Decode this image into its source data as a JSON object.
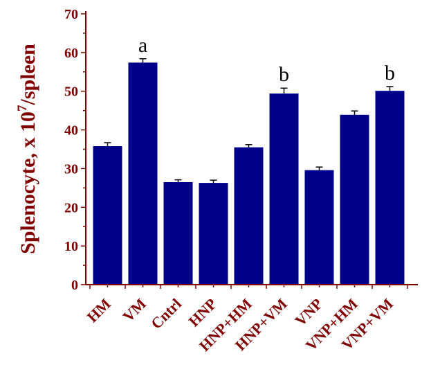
{
  "chart_data": {
    "type": "bar",
    "title": "",
    "xlabel": "",
    "ylabel": {
      "prefix": "Splenocyte, x 10",
      "sup": "7",
      "suffix": "/spleen"
    },
    "ylim": [
      0,
      70
    ],
    "yticks": [
      0,
      10,
      20,
      30,
      40,
      50,
      60,
      70
    ],
    "categories": [
      "HM",
      "VM",
      "Cntrl",
      "HNP",
      "HNP+HM",
      "HNP+VM",
      "VNP",
      "VNP+HM",
      "VNP+VM"
    ],
    "values": [
      35.8,
      57.4,
      26.5,
      26.3,
      35.5,
      49.4,
      29.6,
      43.9,
      50.1
    ],
    "errors": [
      0.9,
      1.0,
      0.6,
      0.7,
      0.7,
      1.4,
      0.8,
      1.0,
      1.1
    ],
    "annotations": [
      "",
      "a",
      "",
      "",
      "",
      "b",
      "",
      "",
      "b"
    ],
    "grid": false,
    "colors": {
      "bar": "#00008B",
      "text": "#800000",
      "axis": "#800000",
      "annotation": "#000000",
      "error": "#000000"
    }
  }
}
